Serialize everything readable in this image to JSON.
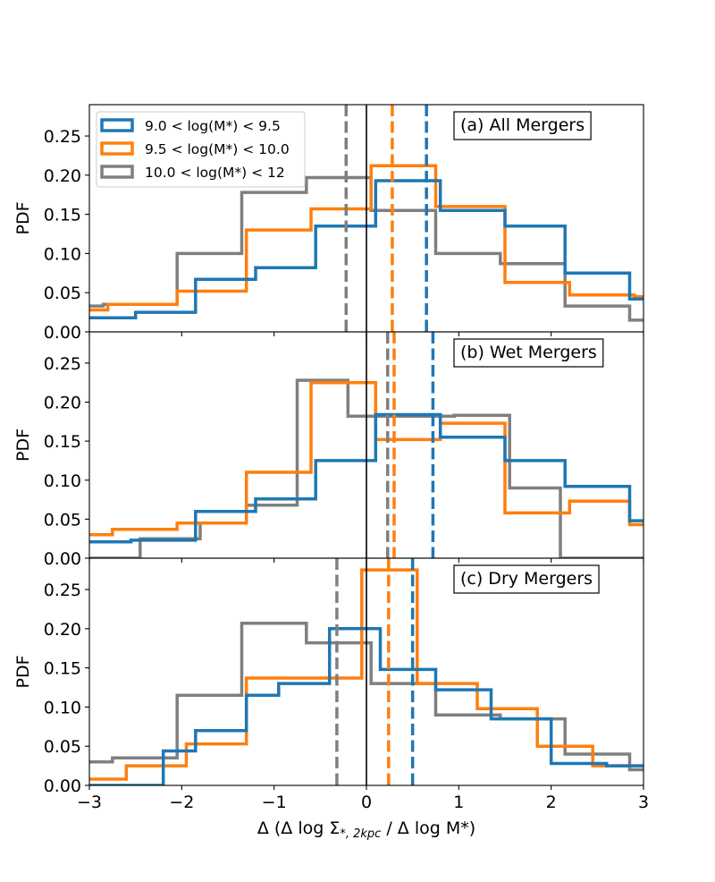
{
  "colors": {
    "blue": "#1f77b4",
    "orange": "#ff7f0e",
    "gray": "#7f7f7f"
  },
  "chart_data": {
    "type": "histogram",
    "xlabel_main": "Δ (Δ log Σ",
    "xlabel_sub": "*, 2kpc",
    "xlabel_tail": " / Δ log M*)",
    "xlim": [
      -3,
      3
    ],
    "ylim": [
      0,
      0.29
    ],
    "xticks": [
      -3,
      -2,
      -1,
      0,
      1,
      2,
      3
    ],
    "xtick_labels": [
      "−3",
      "−2",
      "−1",
      "0",
      "1",
      "2",
      "3"
    ],
    "yticks": [
      0,
      0.05,
      0.1,
      0.15,
      0.2,
      0.25
    ],
    "ytick_labels": [
      "0.00",
      "0.05",
      "0.10",
      "0.15",
      "0.20",
      "0.25"
    ],
    "legend": [
      {
        "label": "9.0 < log(M*) < 9.5",
        "color": "#1f77b4"
      },
      {
        "label": "9.5 < log(M*) < 10.0",
        "color": "#ff7f0e"
      },
      {
        "label": "10.0 < log(M*) < 12",
        "color": "#7f7f7f"
      }
    ],
    "panels": [
      {
        "title": "(a) All Mergers",
        "ylabel": "PDF",
        "series": [
          {
            "name": "10.0 < log(M*) < 12",
            "color": "#7f7f7f",
            "edges": [
              -3.2,
              -2.85,
              -2.05,
              -1.35,
              -0.65,
              0.05,
              0.75,
              1.45,
              2.15,
              2.85,
              3.2
            ],
            "values": [
              0.033,
              0.035,
              0.1,
              0.178,
              0.197,
              0.155,
              0.1,
              0.087,
              0.033,
              0.015
            ],
            "median": -0.22
          },
          {
            "name": "9.5 < log(M*) < 10.0",
            "color": "#ff7f0e",
            "edges": [
              -3.2,
              -2.8,
              -2.05,
              -1.3,
              -0.6,
              0.05,
              0.75,
              1.5,
              2.2,
              2.9,
              3.2
            ],
            "values": [
              0.028,
              0.035,
              0.052,
              0.13,
              0.157,
              0.212,
              0.16,
              0.063,
              0.047,
              0.045
            ],
            "median": 0.28
          },
          {
            "name": "9.0 < log(M*) < 9.5",
            "color": "#1f77b4",
            "edges": [
              -3.2,
              -2.5,
              -1.85,
              -1.2,
              -0.55,
              0.1,
              0.8,
              1.5,
              2.15,
              2.85,
              3.2
            ],
            "values": [
              0.018,
              0.025,
              0.067,
              0.082,
              0.135,
              0.193,
              0.155,
              0.135,
              0.075,
              0.042
            ],
            "median": 0.65
          }
        ]
      },
      {
        "title": "(b) Wet Mergers",
        "ylabel": "PDF",
        "series": [
          {
            "name": "10.0 < log(M*) < 12",
            "color": "#7f7f7f",
            "edges": [
              -3.2,
              -2.45,
              -1.8,
              -1.3,
              -0.75,
              -0.2,
              0.95,
              1.55,
              2.1,
              3.2
            ],
            "values": [
              0.0,
              0.025,
              0.045,
              0.068,
              0.228,
              0.182,
              0.183,
              0.09,
              0.0
            ],
            "median": 0.23
          },
          {
            "name": "9.5 < log(M*) < 10.0",
            "color": "#ff7f0e",
            "edges": [
              -3.2,
              -2.75,
              -2.05,
              -1.3,
              -0.6,
              0.1,
              0.8,
              1.5,
              2.2,
              2.85,
              3.2
            ],
            "values": [
              0.03,
              0.037,
              0.045,
              0.11,
              0.225,
              0.152,
              0.173,
              0.058,
              0.073,
              0.043
            ],
            "median": 0.3
          },
          {
            "name": "9.0 < log(M*) < 9.5",
            "color": "#1f77b4",
            "edges": [
              -3.2,
              -2.55,
              -1.85,
              -1.2,
              -0.55,
              0.1,
              0.8,
              1.5,
              2.15,
              2.85,
              3.2
            ],
            "values": [
              0.021,
              0.023,
              0.06,
              0.076,
              0.125,
              0.184,
              0.155,
              0.125,
              0.092,
              0.048
            ],
            "median": 0.72
          }
        ]
      },
      {
        "title": "(c) Dry Mergers",
        "ylabel": "PDF",
        "series": [
          {
            "name": "10.0 < log(M*) < 12",
            "color": "#7f7f7f",
            "edges": [
              -3.2,
              -2.75,
              -2.05,
              -1.35,
              -0.65,
              0.05,
              0.75,
              1.45,
              2.15,
              2.85,
              3.2
            ],
            "values": [
              0.03,
              0.035,
              0.115,
              0.207,
              0.182,
              0.13,
              0.09,
              0.085,
              0.04,
              0.02
            ],
            "median": -0.32
          },
          {
            "name": "9.5 < log(M*) < 10.0",
            "color": "#ff7f0e",
            "edges": [
              -3.2,
              -2.6,
              -1.95,
              -1.3,
              -0.05,
              0.55,
              1.2,
              1.85,
              2.45,
              3.2
            ],
            "values": [
              0.008,
              0.025,
              0.053,
              0.137,
              0.275,
              0.13,
              0.098,
              0.05,
              0.025
            ],
            "median": 0.24
          },
          {
            "name": "9.0 < log(M*) < 9.5",
            "color": "#1f77b4",
            "edges": [
              -3.2,
              -2.2,
              -1.85,
              -1.3,
              -0.95,
              -0.4,
              0.15,
              0.75,
              1.35,
              2.0,
              2.6,
              3.2
            ],
            "values": [
              0.0,
              0.044,
              0.07,
              0.115,
              0.13,
              0.2,
              0.148,
              0.122,
              0.085,
              0.028,
              0.025
            ],
            "median": 0.5
          }
        ]
      }
    ]
  }
}
